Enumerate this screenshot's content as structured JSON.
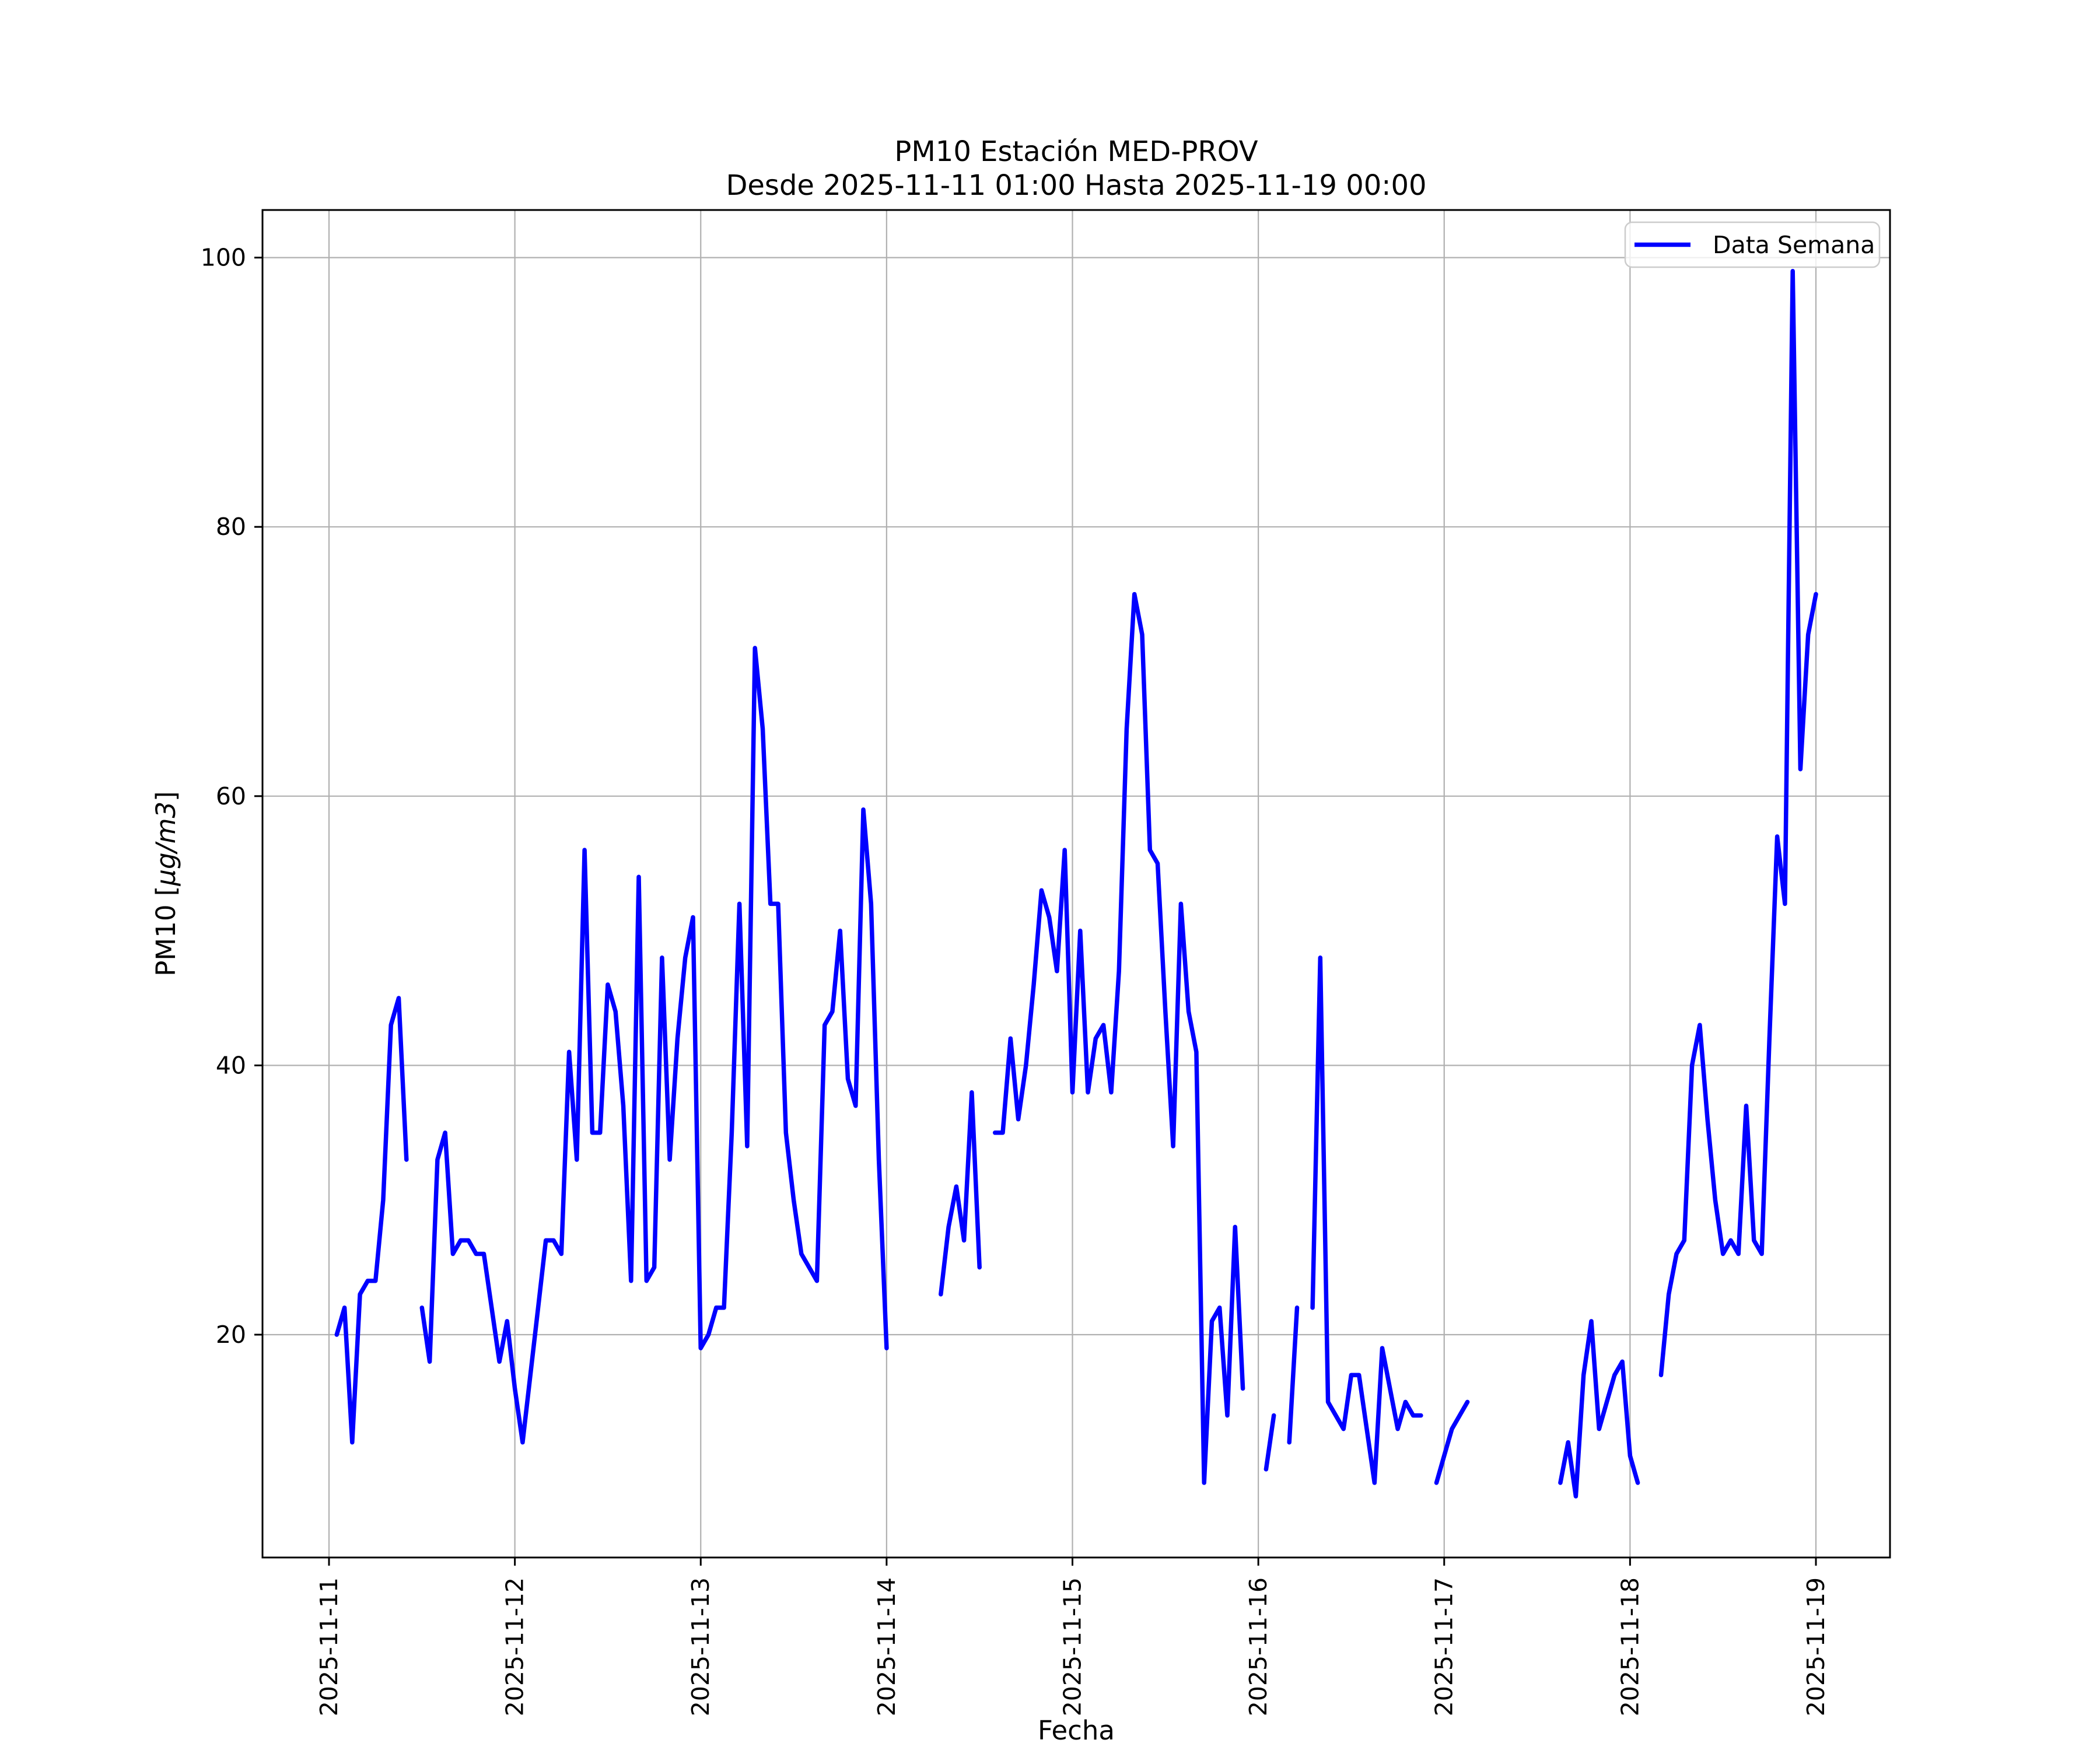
{
  "title": {
    "line1": "PM10 Estación MED-PROV",
    "line2": "Desde 2025-11-11 01:00 Hasta 2025-11-19 00:00"
  },
  "axes": {
    "xlabel": "Fecha",
    "ylabel_prefix": "PM10 [",
    "ylabel_italic": "µg/m3",
    "ylabel_suffix": "]"
  },
  "legend": {
    "label": "Data Semana"
  },
  "colors": {
    "line": "#0000ff",
    "grid": "#b0b0b0",
    "spine": "#000000",
    "legend_border": "#cccccc",
    "background": "#ffffff",
    "text": "#000000"
  },
  "chart_data": {
    "type": "line",
    "title": "PM10 Estación MED-PROV — Desde 2025-11-11 01:00 Hasta 2025-11-19 00:00",
    "xlabel": "Fecha",
    "ylabel": "PM10 [µg/m3]",
    "grid": true,
    "legend_position": "upper right",
    "x_tick_labels": [
      "2025-11-11",
      "2025-11-12",
      "2025-11-13",
      "2025-11-14",
      "2025-11-15",
      "2025-11-16",
      "2025-11-17",
      "2025-11-18",
      "2025-11-19"
    ],
    "x_tick_hours": [
      0,
      24,
      48,
      72,
      96,
      120,
      144,
      168,
      192
    ],
    "y_ticks": [
      20,
      40,
      60,
      80,
      100
    ],
    "ylim": [
      3.4,
      103.5
    ],
    "xlim_hours": [
      -8.6,
      201.6
    ],
    "series": [
      {
        "name": "Data Semana",
        "color": "#0000ff",
        "start": "2025-11-11 01:00",
        "end": "2025-11-19 00:00",
        "step_hours": 1,
        "first_point_hour_offset": 1,
        "values": [
          20,
          22,
          12,
          23,
          24,
          24,
          30,
          43,
          45,
          33,
          null,
          22,
          18,
          33,
          35,
          26,
          27,
          27,
          26,
          26,
          22,
          18,
          21,
          16,
          12,
          17,
          22,
          27,
          27,
          26,
          41,
          33,
          56,
          35,
          35,
          46,
          44,
          37,
          24,
          54,
          24,
          25,
          48,
          33,
          42,
          48,
          51,
          19,
          20,
          22,
          22,
          35,
          52,
          34,
          71,
          65,
          52,
          52,
          35,
          30,
          26,
          25,
          24,
          43,
          44,
          50,
          39,
          37,
          59,
          52,
          33,
          19,
          null,
          null,
          null,
          null,
          null,
          null,
          23,
          28,
          31,
          27,
          38,
          25,
          null,
          35,
          35,
          42,
          36,
          40,
          46,
          53,
          51,
          47,
          56,
          38,
          50,
          38,
          42,
          43,
          38,
          47,
          65,
          75,
          72,
          56,
          55,
          44,
          34,
          52,
          44,
          41,
          9,
          21,
          22,
          14,
          28,
          16,
          null,
          null,
          10,
          14,
          null,
          12,
          22,
          null,
          22,
          48,
          15,
          14,
          13,
          17,
          17,
          13,
          9,
          19,
          16,
          13,
          15,
          14,
          14,
          null,
          9,
          11,
          13,
          14,
          15,
          null,
          null,
          null,
          null,
          null,
          null,
          null,
          null,
          null,
          null,
          null,
          9,
          12,
          8,
          17,
          21,
          13,
          15,
          17,
          18,
          11,
          9,
          null,
          null,
          17,
          23,
          26,
          27,
          40,
          43,
          36,
          30,
          26,
          27,
          26,
          37,
          27,
          26,
          42,
          57,
          52,
          99,
          62,
          72,
          75
        ]
      }
    ]
  }
}
